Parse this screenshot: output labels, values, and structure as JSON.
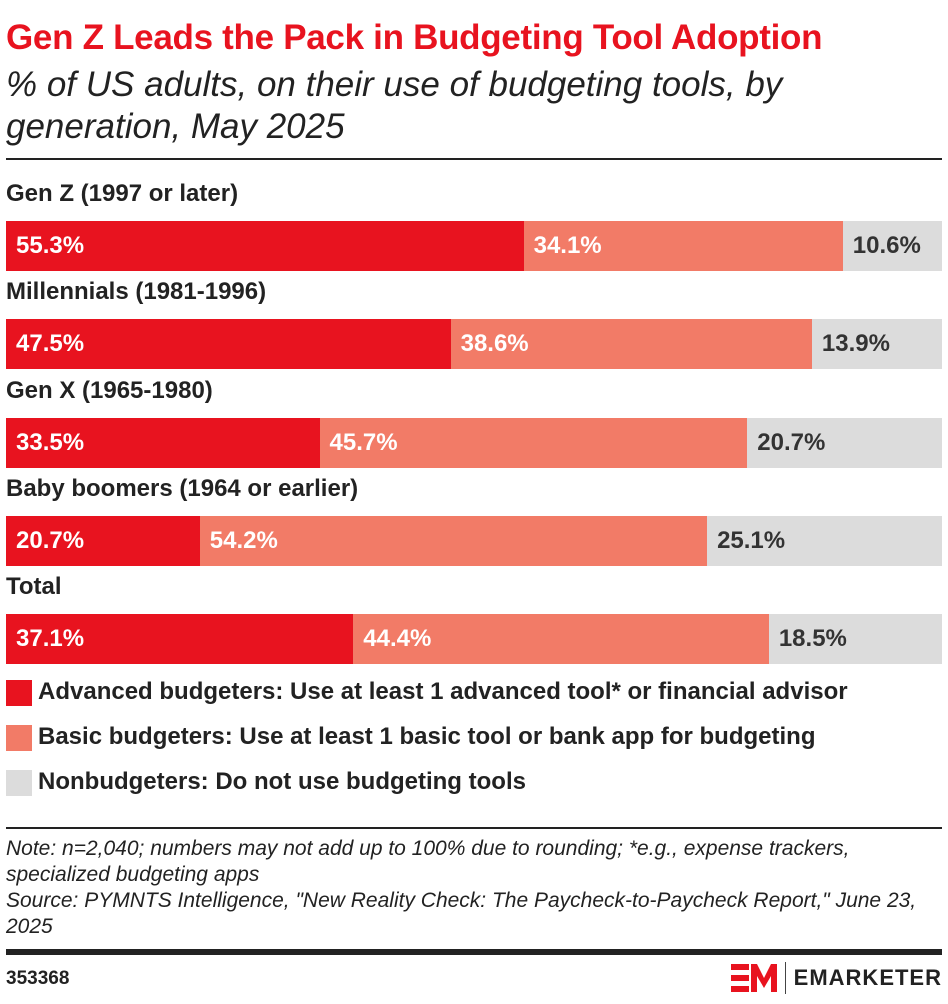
{
  "chart_data": {
    "type": "bar",
    "stacked": true,
    "orientation": "horizontal",
    "title": "Gen Z Leads the Pack in Budgeting Tool Adoption",
    "subtitle": "% of US adults, on their use of budgeting tools, by generation, May 2025",
    "categories": [
      "Gen Z (1997 or later)",
      "Millennials (1981-1996)",
      "Gen X (1965-1980)",
      "Baby boomers (1964 or earlier)",
      "Total"
    ],
    "series": [
      {
        "name": "Advanced budgeters: Use at least 1 advanced tool* or financial advisor",
        "color": "#e8131f",
        "values": [
          55.3,
          47.5,
          33.5,
          20.7,
          37.1
        ]
      },
      {
        "name": "Basic budgeters: Use at least 1 basic tool or bank app for budgeting",
        "color": "#f27b67",
        "values": [
          34.1,
          38.6,
          45.7,
          54.2,
          44.4
        ]
      },
      {
        "name": "Nonbudgeters: Do not use budgeting tools",
        "color": "#dcdcdc",
        "values": [
          10.6,
          13.9,
          20.7,
          25.1,
          18.5
        ]
      }
    ],
    "legend_position": "bottom",
    "xlim": [
      0,
      100
    ]
  },
  "note": "Note: n=2,040; numbers may not add up to 100% due to rounding; *e.g., expense trackers, specialized budgeting apps",
  "source": "Source: PYMNTS Intelligence, \"New Reality Check: The Paycheck-to-Paycheck Report,\" June 23, 2025",
  "chart_id": "353368",
  "logo_text": "EMARKETER"
}
